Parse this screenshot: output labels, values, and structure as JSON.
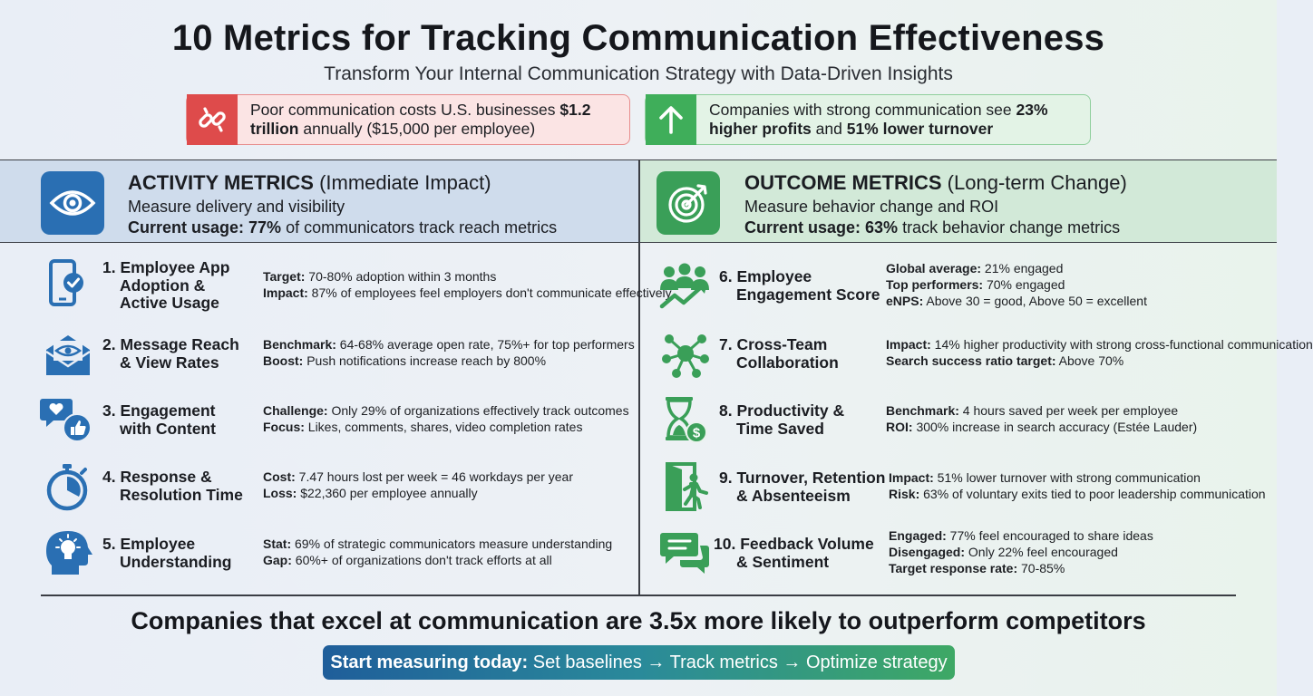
{
  "header": {
    "title": "10 Metrics for Tracking Communication Effectiveness",
    "subtitle": "Transform Your Internal Communication Strategy with Data-Driven Insights"
  },
  "stats": {
    "cost": {
      "icon": "broken-link-icon",
      "color": "#de4b4b",
      "text_pre": "Poor communication costs U.S. businesses ",
      "text_bold": "$1.2 trillion",
      "text_post": " annually ($15,000 per employee)"
    },
    "profit": {
      "icon": "arrow-up-icon",
      "color": "#3fae5a",
      "text_pre": "Companies with strong communication see ",
      "text_bold1": "23% higher profits",
      "text_mid": " and ",
      "text_bold2": "51% lower turnover"
    }
  },
  "activity": {
    "icon": "eye-icon",
    "color": "#2a6fb3",
    "title_bold": "ACTIVITY METRICS",
    "title_rest": " (Immediate Impact)",
    "desc": "Measure delivery and visibility",
    "usage_label": "Current usage: 77%",
    "usage_rest": " of communicators track reach metrics",
    "metrics": [
      {
        "num": "1.",
        "name1": "Employee App",
        "name2": "Adoption &",
        "name3": "Active Usage",
        "icon": "phone-check-icon",
        "l1": "Target:",
        "v1": " 70-80% adoption within 3 months",
        "l2": "Impact:",
        "v2": " 87% of employees feel employers don't communicate effectively"
      },
      {
        "num": "2.",
        "name1": "Message Reach",
        "name2": "& View Rates",
        "icon": "envelope-eye-icon",
        "l1": "Benchmark:",
        "v1": " 64-68% average open rate, 75%+ for top performers",
        "l2": "Boost:",
        "v2": " Push notifications increase reach by 800%"
      },
      {
        "num": "3.",
        "name1": "Engagement",
        "name2": "with Content",
        "icon": "like-heart-icon",
        "l1": "Challenge:",
        "v1": " Only 29% of organizations effectively track outcomes",
        "l2": "Focus:",
        "v2": " Likes, comments, shares, video completion rates"
      },
      {
        "num": "4.",
        "name1": "Response &",
        "name2": "Resolution Time",
        "icon": "stopwatch-icon",
        "l1": "Cost:",
        "v1": " 7.47 hours lost per week = 46 workdays per year",
        "l2": "Loss:",
        "v2": " $22,360 per employee annually"
      },
      {
        "num": "5.",
        "name1": "Employee",
        "name2": "Understanding",
        "icon": "head-lightbulb-icon",
        "l1": "Stat:",
        "v1": " 69% of strategic communicators measure understanding",
        "l2": "Gap:",
        "v2": " 60%+ of organizations don't track efforts at all"
      }
    ]
  },
  "outcome": {
    "icon": "target-icon",
    "color": "#3a9f58",
    "title_bold": "OUTCOME METRICS",
    "title_rest": " (Long-term Change)",
    "desc": "Measure behavior change and ROI",
    "usage_label": "Current usage: 63%",
    "usage_rest": " track behavior change metrics",
    "metrics": [
      {
        "num": "6.",
        "name1": "Employee",
        "name2": "Engagement Score",
        "icon": "team-growth-icon",
        "l1": "Global average:",
        "v1": " 21% engaged",
        "l2": "Top performers:",
        "v2": " 70% engaged",
        "l3": "eNPS:",
        "v3": " Above 30 = good, Above 50 = excellent"
      },
      {
        "num": "7.",
        "name1": "Cross-Team",
        "name2": "Collaboration",
        "icon": "network-icon",
        "l1": "Impact:",
        "v1": " 14% higher productivity with strong cross-functional communication",
        "l2": "Search success ratio target:",
        "v2": " Above 70%"
      },
      {
        "num": "8.",
        "name1": "Productivity &",
        "name2": "Time Saved",
        "icon": "hourglass-dollar-icon",
        "l1": "Benchmark:",
        "v1": " 4 hours saved per week per employee",
        "l2": "ROI:",
        "v2": " 300% increase in search accuracy (Estée Lauder)"
      },
      {
        "num": "9.",
        "name1": "Turnover, Retention",
        "name2": "& Absenteeism",
        "icon": "exit-door-icon",
        "l1": "Impact:",
        "v1": " 51% lower turnover with strong communication",
        "l2": "Risk:",
        "v2": " 63% of voluntary exits tied to poor leadership communication"
      },
      {
        "num": "10.",
        "name1": "Feedback Volume",
        "name2": "& Sentiment",
        "icon": "chat-bubbles-icon",
        "l1": "Engaged:",
        "v1": " 77% feel encouraged to share ideas",
        "l2": "Disengaged:",
        "v2": " Only 22% feel encouraged",
        "l3": "Target response rate:",
        "v3": " 70-85%"
      }
    ]
  },
  "footer": {
    "headline": "Companies that excel at communication are 3.5x more likely to outperform competitors",
    "cta_bold": "Start measuring today:",
    "cta_rest": " Set baselines → Track metrics → Optimize strategy"
  }
}
